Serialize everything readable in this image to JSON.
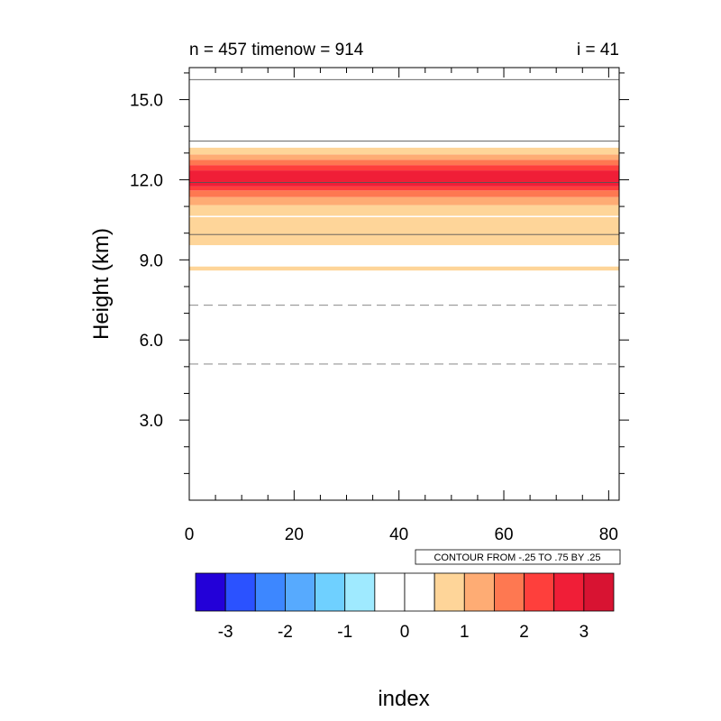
{
  "chart_data": {
    "type": "heatmap",
    "title_left": "n = 457 timenow = 914",
    "title_right": "i = 41",
    "xlabel": "index",
    "ylabel": "Height (km)",
    "xlim": [
      0,
      82
    ],
    "ylim": [
      0,
      16.2
    ],
    "x_ticks": [
      0,
      20,
      40,
      60,
      80
    ],
    "x_tick_labels": [
      "0",
      "20",
      "40",
      "60",
      "80"
    ],
    "y_ticks": [
      3,
      6,
      9,
      12,
      15
    ],
    "y_tick_labels": [
      "3.0",
      "6.0",
      "9.0",
      "12.0",
      "15.0"
    ],
    "contour_info": "CONTOUR FROM -.25 TO .75 BY .25",
    "grid": false,
    "fill_bands": [
      {
        "y0": 8.6,
        "y1": 8.75,
        "level": 1
      },
      {
        "y0": 9.55,
        "y1": 10.6,
        "level": 1
      },
      {
        "y0": 10.6,
        "y1": 10.65,
        "level": 0
      },
      {
        "y0": 10.65,
        "y1": 11.05,
        "level": 1
      },
      {
        "y0": 11.05,
        "y1": 11.35,
        "level": 2
      },
      {
        "y0": 11.35,
        "y1": 11.6,
        "level": 3
      },
      {
        "y0": 11.6,
        "y1": 11.75,
        "level": 4
      },
      {
        "y0": 11.75,
        "y1": 12.35,
        "level": 5
      },
      {
        "y0": 12.35,
        "y1": 12.55,
        "level": 4
      },
      {
        "y0": 12.55,
        "y1": 12.75,
        "level": 3
      },
      {
        "y0": 12.75,
        "y1": 12.95,
        "level": 2
      },
      {
        "y0": 12.95,
        "y1": 13.2,
        "level": 1
      }
    ],
    "contour_lines": [
      {
        "y": 5.1,
        "style": "dashed"
      },
      {
        "y": 7.3,
        "style": "dashed"
      },
      {
        "y": 9.95,
        "style": "solid"
      },
      {
        "y": 11.9,
        "style": "solid"
      },
      {
        "y": 13.45,
        "style": "solid"
      },
      {
        "y": 15.75,
        "style": "solid"
      }
    ],
    "colorbar": {
      "colors": [
        "#2300d8",
        "#2b52ff",
        "#3d87ff",
        "#57aafe",
        "#6fd0ff",
        "#9feaff",
        "#ffffff",
        "#ffffff",
        "#fed599",
        "#feac74",
        "#fe7851",
        "#fe3f3c",
        "#f01e37",
        "#d81332"
      ],
      "labels": [
        "-3",
        "-2",
        "-1",
        "0",
        "1",
        "2",
        "3"
      ]
    },
    "level_colors": [
      "#ffffff",
      "#fed599",
      "#feac74",
      "#fe7851",
      "#fe3f3c",
      "#f01e37"
    ]
  }
}
